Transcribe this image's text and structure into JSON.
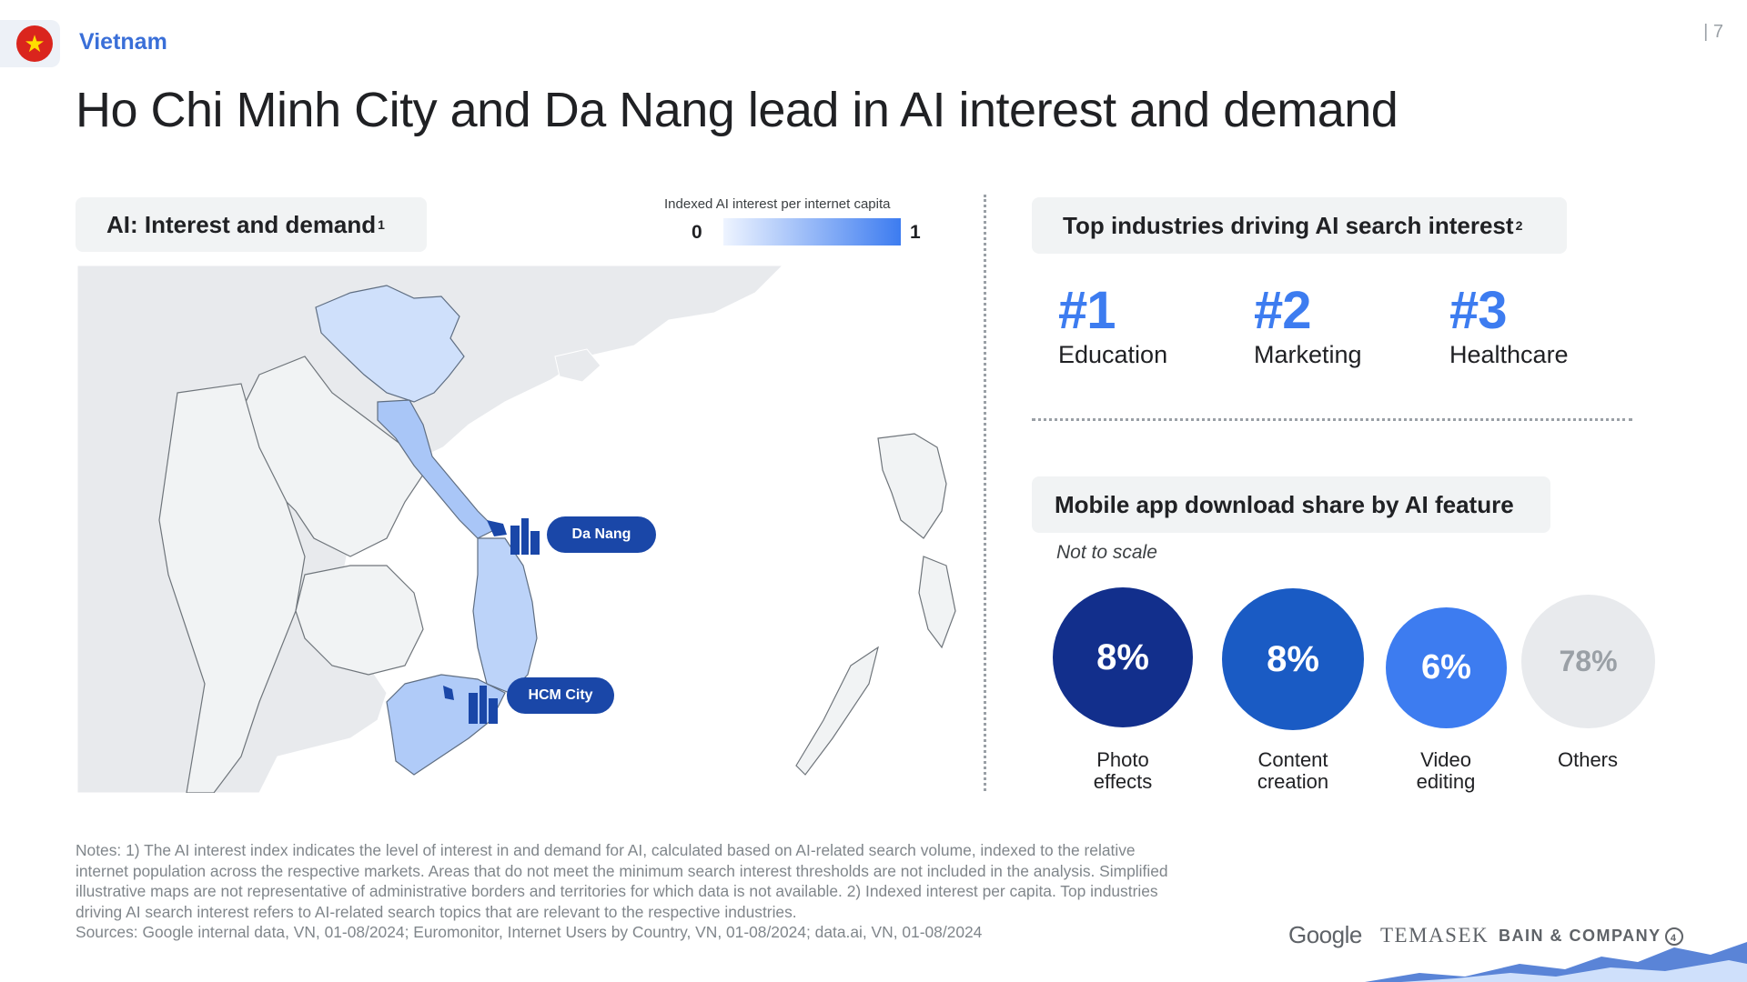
{
  "header": {
    "country": "Vietnam",
    "page_number": "| 7",
    "title": "Ho Chi Minh City and Da Nang lead in AI interest and demand"
  },
  "map_panel": {
    "heading": "AI: Interest and demand",
    "heading_sup": "1",
    "legend_title": "Indexed AI interest per internet capita",
    "legend_min": "0",
    "legend_max": "1",
    "legend_color_low": "#eef4ff",
    "legend_color_high": "#3d7cf0",
    "city_labels": [
      "Da Nang",
      "HCM City"
    ]
  },
  "industries": {
    "heading": "Top industries driving AI search interest",
    "heading_sup": "2",
    "items": [
      {
        "rank": "#1",
        "label": "Education"
      },
      {
        "rank": "#2",
        "label": "Marketing"
      },
      {
        "rank": "#3",
        "label": "Healthcare"
      }
    ]
  },
  "downloads": {
    "heading": "Mobile app download share by AI feature",
    "note": "Not to scale",
    "bubbles": [
      {
        "value": "8%",
        "label_line1": "Photo",
        "label_line2": "effects",
        "color": "#122f8c"
      },
      {
        "value": "8%",
        "label_line1": "Content",
        "label_line2": "creation",
        "color": "#1a5bc4"
      },
      {
        "value": "6%",
        "label_line1": "Video",
        "label_line2": "editing",
        "color": "#3d7cf0"
      },
      {
        "value": "78%",
        "label_line1": "Others",
        "label_line2": "",
        "color": "#e8eaed"
      }
    ]
  },
  "footer": {
    "notes": "Notes: 1) The AI interest index indicates the level of interest in and demand for AI, calculated based on AI-related search volume, indexed to the relative internet population across the respective markets. Areas that do not meet the minimum search interest thresholds are not included in the analysis. Simplified illustrative maps are not representative of administrative borders and territories for which data is not available. 2) Indexed interest per capita. Top industries driving AI search interest refers to AI-related search topics that are relevant to the respective industries.",
    "sources": "Sources: Google internal data, VN, 01-08/2024; Euromonitor, Internet Users by Country, VN, 01-08/2024; data.ai, VN, 01-08/2024",
    "logos": [
      "Google",
      "TEMASEK",
      "BAIN & COMPANY"
    ]
  }
}
